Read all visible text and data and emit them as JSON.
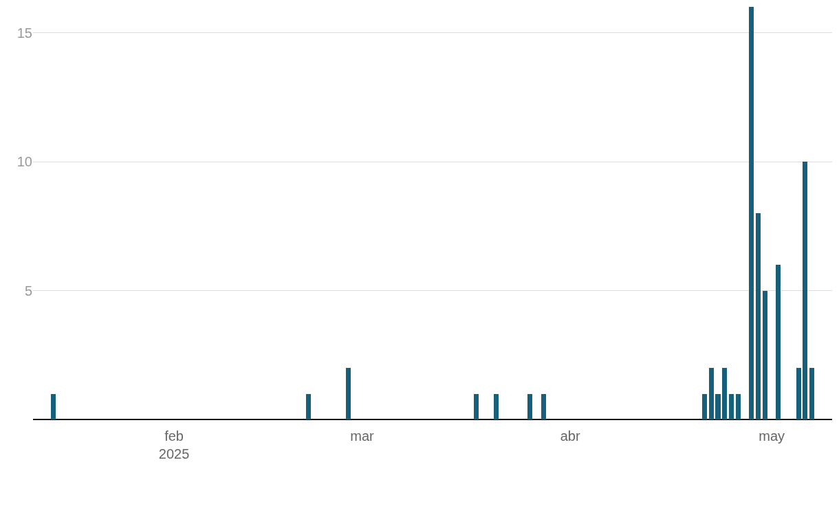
{
  "chart_data": {
    "type": "bar",
    "x": [
      "2025-01-14",
      "2025-02-21",
      "2025-02-27",
      "2025-03-18",
      "2025-03-21",
      "2025-03-26",
      "2025-03-28",
      "2025-04-21",
      "2025-04-22",
      "2025-04-23",
      "2025-04-24",
      "2025-04-25",
      "2025-04-26",
      "2025-04-28",
      "2025-04-29",
      "2025-04-30",
      "2025-05-02",
      "2025-05-05",
      "2025-05-06",
      "2025-05-07"
    ],
    "values": [
      1,
      1,
      2,
      1,
      1,
      1,
      1,
      1,
      2,
      1,
      2,
      1,
      1,
      16,
      8,
      5,
      6,
      2,
      10,
      2
    ],
    "color": "#17607b",
    "xlim": [
      "2025-01-11",
      "2025-05-10"
    ],
    "xticks": [
      {
        "value": "2025-02-01",
        "label": "feb\n2025"
      },
      {
        "value": "2025-03-01",
        "label": "mar"
      },
      {
        "value": "2025-04-01",
        "label": "abr"
      },
      {
        "value": "2025-05-01",
        "label": "may"
      }
    ],
    "ylim": [
      0,
      16
    ],
    "yticks": [
      5,
      10,
      15
    ],
    "grid": "y"
  }
}
